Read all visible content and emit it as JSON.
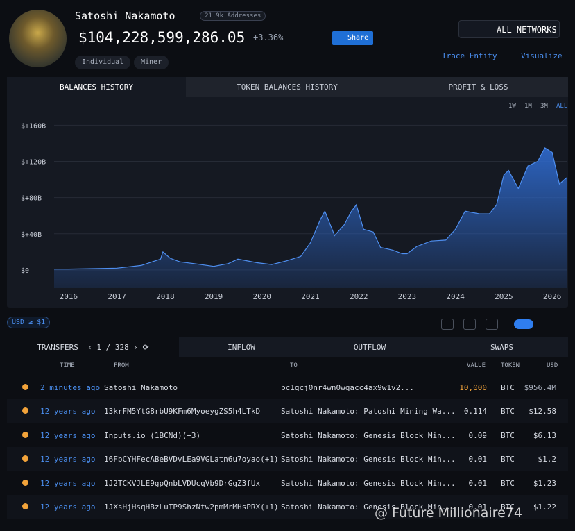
{
  "header": {
    "name": "Satoshi Nakamoto",
    "addresses": "21.9k Addresses",
    "balance": "$104,228,599,286.05",
    "change": "+3.36%",
    "share": "Share",
    "tags": [
      "Individual",
      "Miner"
    ],
    "network": "ALL NETWORKS",
    "trace": "Trace Entity",
    "visualize": "Visualize"
  },
  "tabs": [
    "BALANCES HISTORY",
    "TOKEN BALANCES HISTORY",
    "PROFIT & LOSS"
  ],
  "ranges": [
    "1W",
    "1M",
    "3M",
    "ALL"
  ],
  "chart_data": {
    "type": "area",
    "color": "#2f6bd0",
    "x": [
      2015.7,
      2016,
      2016.5,
      2017,
      2017.5,
      2017.9,
      2017.95,
      2018.1,
      2018.3,
      2018.6,
      2019,
      2019.3,
      2019.5,
      2019.9,
      2020.2,
      2020.5,
      2020.8,
      2021,
      2021.2,
      2021.3,
      2021.5,
      2021.7,
      2021.85,
      2021.95,
      2022.1,
      2022.3,
      2022.45,
      2022.7,
      2022.9,
      2023,
      2023.2,
      2023.5,
      2023.8,
      2024,
      2024.2,
      2024.5,
      2024.7,
      2024.85,
      2025,
      2025.1,
      2025.3,
      2025.5,
      2025.7,
      2025.85,
      2026,
      2026.15,
      2026.3
    ],
    "values": [
      1,
      1,
      1.5,
      2,
      5,
      12,
      20,
      13,
      9,
      7,
      4,
      7,
      12,
      8,
      6,
      10,
      15,
      30,
      55,
      65,
      38,
      50,
      65,
      72,
      45,
      42,
      25,
      22,
      18,
      18,
      26,
      32,
      33,
      45,
      65,
      62,
      62,
      72,
      105,
      110,
      90,
      115,
      120,
      135,
      130,
      95,
      102
    ],
    "xlim": [
      2015.7,
      2026.3
    ],
    "xticks": [
      2016,
      2017,
      2018,
      2019,
      2020,
      2021,
      2022,
      2023,
      2024,
      2025,
      2026
    ],
    "ylim": [
      -20,
      168
    ],
    "yticks": [
      {
        "value": 0,
        "label": "$0"
      },
      {
        "value": 40,
        "label": "$+40B"
      },
      {
        "value": 80,
        "label": "$+80B"
      },
      {
        "value": 120,
        "label": "$+120B"
      },
      {
        "value": 160,
        "label": "$+160B"
      }
    ],
    "grid": true
  },
  "filter": "USD ≥ $1",
  "transfers": {
    "tabs": [
      "TRANSFERS",
      "INFLOW",
      "OUTFLOW",
      "SWAPS"
    ],
    "page": "1 / 328",
    "columns": [
      "TIME",
      "FROM",
      "TO",
      "VALUE",
      "TOKEN",
      "USD"
    ],
    "rows": [
      [
        "2 minutes ago",
        "Satoshi Nakamoto",
        "bc1qcj0nr4wn0wqacc4ax9w1v2...",
        "10,000",
        "BTC",
        "$956.4M"
      ],
      [
        "12 years ago",
        "13krFM5YtG8rbU9KFm6MyoeygZS5h4LTkD",
        "Satoshi Nakamoto: Patoshi Mining Wa...",
        "0.114",
        "BTC",
        "$12.58"
      ],
      [
        "12 years ago",
        "Inputs.io (1BCNd)(+3)",
        "Satoshi Nakamoto: Genesis Block Min...",
        "0.09",
        "BTC",
        "$6.13"
      ],
      [
        "12 years ago",
        "16FbCYHFecABeBVDvLEa9VGLatn6u7oyao(+1)",
        "Satoshi Nakamoto: Genesis Block Min...",
        "0.01",
        "BTC",
        "$1.2"
      ],
      [
        "12 years ago",
        "1J2TCKVJLE9gpQnbLVDUcqVb9DrGgZ3fUx",
        "Satoshi Nakamoto: Genesis Block Min...",
        "0.01",
        "BTC",
        "$1.23"
      ],
      [
        "12 years ago",
        "1JXsHjHsqHBzLuTP9ShzNtw2pmMrMHsPRX(+1)",
        "Satoshi Nakamoto: Genesis Block Min...",
        "0.01",
        "BTC",
        "$1.22"
      ]
    ]
  },
  "watermark": "@ Future Millionaire74"
}
